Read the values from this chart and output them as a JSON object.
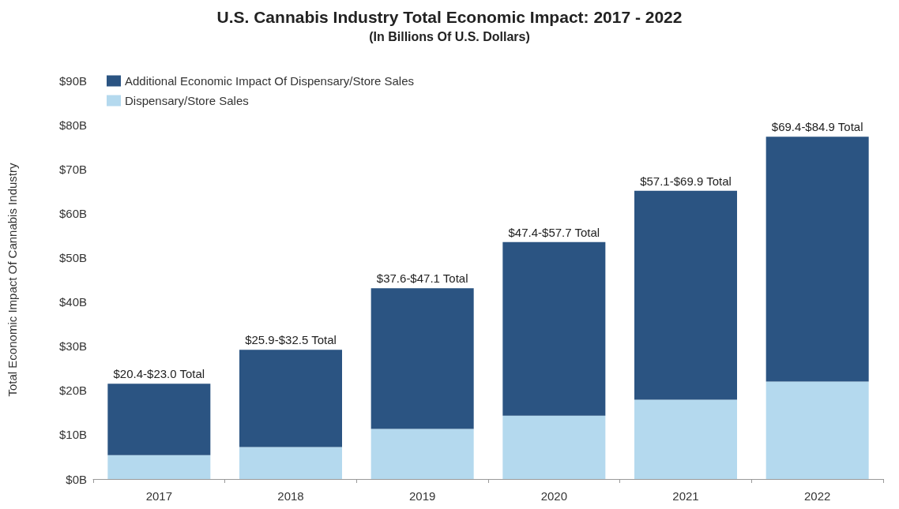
{
  "chart_data": {
    "type": "bar",
    "title": "U.S. Cannabis Industry Total Economic Impact: 2017 - 2022",
    "subtitle": "(In Billions Of U.S. Dollars)",
    "ylabel": "Total Economic Impact Of Cannabis Industry",
    "categories": [
      "2017",
      "2018",
      "2019",
      "2020",
      "2021",
      "2022"
    ],
    "stacked": true,
    "series": [
      {
        "name": "Dispensary/Store Sales",
        "color": "#b4d9ee",
        "values": [
          5.4,
          7.2,
          11.3,
          14.3,
          17.9,
          22.0
        ]
      },
      {
        "name": "Additional Economic Impact Of Dispensary/Store Sales",
        "color": "#2b5482",
        "values": [
          16.1,
          22.0,
          31.8,
          39.2,
          47.2,
          55.3
        ]
      }
    ],
    "totals": [
      "$20.4-$23.0 Total",
      "$25.9-$32.5 Total",
      "$37.6-$47.1 Total",
      "$47.4-$57.7 Total",
      "$57.1-$69.9 Total",
      "$69.4-$84.9 Total"
    ],
    "ylim": [
      0,
      90
    ],
    "yticks": [
      {
        "value": 0,
        "label": "$0B"
      },
      {
        "value": 10,
        "label": "$10B"
      },
      {
        "value": 20,
        "label": "$20B"
      },
      {
        "value": 30,
        "label": "$30B"
      },
      {
        "value": 40,
        "label": "$40B"
      },
      {
        "value": 50,
        "label": "$50B"
      },
      {
        "value": 60,
        "label": "$60B"
      },
      {
        "value": 70,
        "label": "$70B"
      },
      {
        "value": 80,
        "label": "$80B"
      },
      {
        "value": 90,
        "label": "$90B"
      }
    ],
    "grid": false,
    "legend": "top left"
  }
}
